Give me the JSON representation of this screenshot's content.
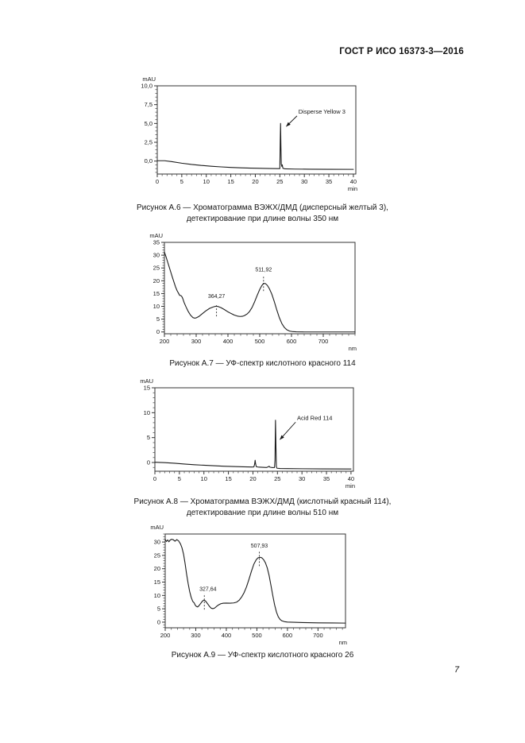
{
  "page": {
    "header": "ГОСТ Р ИСО 16373-3—2016",
    "page_number": "7"
  },
  "chart_data": [
    {
      "type": "line",
      "kind": "chromatogram",
      "y_axis_label": "mAU",
      "x_axis_label": "min",
      "xlim": [
        0,
        40.5
      ],
      "ylim": [
        -1.72,
        10
      ],
      "grid": false,
      "legend": "none",
      "xticks": {
        "values": [
          0,
          5,
          10,
          15,
          20,
          25,
          30,
          35,
          40
        ],
        "labels": [
          "0",
          "5",
          "10",
          "15",
          "20",
          "25",
          "30",
          "35",
          "40"
        ]
      },
      "yticks": {
        "values": [
          0,
          2.5,
          5,
          7.5,
          10
        ],
        "labels": [
          "0,0",
          "2,5",
          "5,0",
          "7,5",
          "10,0"
        ]
      },
      "x_minor_step": 1,
      "y_minor_step": 0.5,
      "series": [
        {
          "name": "signal 350 nm",
          "points": [
            [
              0,
              0.05
            ],
            [
              1.5,
              0.05
            ],
            [
              3,
              -0.08
            ],
            [
              5,
              -0.28
            ],
            [
              7,
              -0.45
            ],
            [
              9,
              -0.58
            ],
            [
              11,
              -0.68
            ],
            [
              13,
              -0.77
            ],
            [
              15,
              -0.84
            ],
            [
              17,
              -0.89
            ],
            [
              19,
              -0.93
            ],
            [
              21,
              -0.96
            ],
            [
              23,
              -0.99
            ],
            [
              24.5,
              -1.0
            ],
            [
              25.0,
              -1.0
            ],
            [
              25.08,
              2.5
            ],
            [
              25.15,
              5.0
            ],
            [
              25.22,
              2.0
            ],
            [
              25.3,
              -0.4
            ],
            [
              25.4,
              -0.7
            ],
            [
              25.5,
              -0.5
            ],
            [
              25.62,
              -0.95
            ],
            [
              26,
              -1.03
            ],
            [
              28,
              -1.06
            ],
            [
              31,
              -1.08
            ],
            [
              35,
              -1.09
            ],
            [
              40,
              -1.1
            ]
          ]
        }
      ],
      "peak_annotations": [],
      "arrow_annotations": [
        {
          "text": "Disperse Yellow 3",
          "text_x": 28.8,
          "text_y": 6.3,
          "line": [
            [
              28.5,
              6.0
            ],
            [
              26.3,
              4.6
            ]
          ]
        }
      ],
      "caption_lines": [
        "Рисунок А.6 — Хроматограмма ВЭЖХ/ДМД (дисперсный желтый 3),",
        "детектирование при длине волны 350 нм"
      ]
    },
    {
      "type": "line",
      "kind": "uv-spectrum",
      "y_axis_label": "mAU",
      "x_axis_label": "nm",
      "xlim": [
        200,
        800
      ],
      "ylim": [
        -0.7,
        35
      ],
      "grid": false,
      "legend": "none",
      "xticks": {
        "values": [
          200,
          300,
          400,
          500,
          600,
          700
        ],
        "labels": [
          "200",
          "300",
          "400",
          "500",
          "600",
          "700"
        ]
      },
      "yticks": {
        "values": [
          0,
          5,
          10,
          15,
          20,
          25,
          30,
          35
        ],
        "labels": [
          "0",
          "5",
          "10",
          "15",
          "20",
          "25",
          "30",
          "35"
        ]
      },
      "x_minor_step": 20,
      "y_minor_step": 1,
      "series": [
        {
          "name": "absorbance",
          "points": [
            [
              200,
              31.2
            ],
            [
              205,
              29.4
            ],
            [
              210,
              27.4
            ],
            [
              215,
              25.4
            ],
            [
              220,
              23.4
            ],
            [
              225,
              21.4
            ],
            [
              230,
              19.5
            ],
            [
              235,
              17.6
            ],
            [
              240,
              16.1
            ],
            [
              245,
              15.0
            ],
            [
              248,
              14.3
            ],
            [
              252,
              14.2
            ],
            [
              255,
              13.8
            ],
            [
              258,
              13.0
            ],
            [
              262,
              11.5
            ],
            [
              268,
              9.8
            ],
            [
              275,
              8.0
            ],
            [
              282,
              6.6
            ],
            [
              290,
              5.6
            ],
            [
              295,
              5.4
            ],
            [
              300,
              5.5
            ],
            [
              308,
              6.0
            ],
            [
              318,
              7.0
            ],
            [
              330,
              8.2
            ],
            [
              342,
              9.2
            ],
            [
              352,
              9.7
            ],
            [
              360,
              10.0
            ],
            [
              364,
              10.05
            ],
            [
              370,
              9.9
            ],
            [
              378,
              9.5
            ],
            [
              388,
              8.8
            ],
            [
              398,
              8.0
            ],
            [
              410,
              7.2
            ],
            [
              420,
              6.6
            ],
            [
              430,
              6.2
            ],
            [
              438,
              6.05
            ],
            [
              445,
              6.1
            ],
            [
              452,
              6.4
            ],
            [
              460,
              7.0
            ],
            [
              468,
              8.0
            ],
            [
              476,
              9.6
            ],
            [
              484,
              11.8
            ],
            [
              492,
              14.3
            ],
            [
              500,
              16.6
            ],
            [
              506,
              18.0
            ],
            [
              512,
              19.0
            ],
            [
              518,
              18.9
            ],
            [
              524,
              18.2
            ],
            [
              530,
              17.0
            ],
            [
              538,
              14.8
            ],
            [
              546,
              11.8
            ],
            [
              554,
              8.5
            ],
            [
              562,
              5.5
            ],
            [
              570,
              3.2
            ],
            [
              578,
              1.7
            ],
            [
              586,
              0.8
            ],
            [
              594,
              0.35
            ],
            [
              604,
              0.12
            ],
            [
              615,
              0.05
            ],
            [
              640,
              0
            ],
            [
              700,
              0
            ],
            [
              800,
              0
            ]
          ]
        }
      ],
      "peak_annotations": [
        {
          "label": "364,27",
          "x": 364,
          "line_y": [
            6.1,
            10.8
          ],
          "label_y": 13.3
        },
        {
          "label": "511,92",
          "x": 512,
          "line_y": [
            16.0,
            21.7
          ],
          "label_y": 23.6
        }
      ],
      "arrow_annotations": [],
      "caption_lines": [
        "Рисунок А.7 — УФ-спектр кислотного красного 114"
      ]
    },
    {
      "type": "line",
      "kind": "chromatogram",
      "y_axis_label": "mAU",
      "x_axis_label": "min",
      "xlim": [
        0,
        40.5
      ],
      "ylim": [
        -1.75,
        15
      ],
      "grid": false,
      "legend": "none",
      "xticks": {
        "values": [
          0,
          5,
          10,
          15,
          20,
          25,
          30,
          35,
          40
        ],
        "labels": [
          "0",
          "5",
          "10",
          "15",
          "20",
          "25",
          "30",
          "35",
          "40"
        ]
      },
      "yticks": {
        "values": [
          0,
          5,
          10,
          15
        ],
        "labels": [
          "0",
          "5",
          "10",
          "15"
        ]
      },
      "x_minor_step": 1,
      "y_minor_step": 1,
      "series": [
        {
          "name": "signal 510 nm",
          "points": [
            [
              0,
              0.05
            ],
            [
              2,
              -0.02
            ],
            [
              4,
              -0.15
            ],
            [
              6,
              -0.3
            ],
            [
              8,
              -0.44
            ],
            [
              10,
              -0.55
            ],
            [
              12,
              -0.65
            ],
            [
              14,
              -0.74
            ],
            [
              16,
              -0.81
            ],
            [
              18,
              -0.87
            ],
            [
              19.8,
              -0.9
            ],
            [
              20.2,
              -0.88
            ],
            [
              20.35,
              -0.3
            ],
            [
              20.45,
              0.45
            ],
            [
              20.55,
              -0.3
            ],
            [
              20.7,
              -0.85
            ],
            [
              21.2,
              -0.93
            ],
            [
              22,
              -0.97
            ],
            [
              22.8,
              -1.0
            ],
            [
              23.1,
              -0.88
            ],
            [
              23.3,
              -0.75
            ],
            [
              23.5,
              -0.95
            ],
            [
              24,
              -1.02
            ],
            [
              24.4,
              -1.0
            ],
            [
              24.5,
              0.5
            ],
            [
              24.6,
              8.5
            ],
            [
              24.7,
              3.0
            ],
            [
              24.78,
              -0.8
            ],
            [
              24.9,
              -1.15
            ],
            [
              25.5,
              -1.2
            ],
            [
              27,
              -1.22
            ],
            [
              30,
              -1.25
            ],
            [
              34,
              -1.28
            ],
            [
              40,
              -1.3
            ]
          ]
        }
      ],
      "peak_annotations": [],
      "arrow_annotations": [
        {
          "text": "Acid Red 114",
          "text_x": 29.0,
          "text_y": 8.5,
          "line": [
            [
              28.7,
              8.1
            ],
            [
              25.5,
              4.6
            ]
          ]
        }
      ],
      "caption_lines": [
        "Рисунок А.8 — Хроматограмма ВЭЖХ/ДМД (кислотный красный 114),",
        "детектирование при длине волны 510 нм"
      ]
    },
    {
      "type": "line",
      "kind": "uv-spectrum",
      "y_axis_label": "mAU",
      "x_axis_label": "nm",
      "xlim": [
        200,
        790
      ],
      "ylim": [
        -2.1,
        33
      ],
      "grid": false,
      "legend": "none",
      "xticks": {
        "values": [
          200,
          300,
          400,
          500,
          600,
          700
        ],
        "labels": [
          "200",
          "300",
          "400",
          "500",
          "600",
          "700"
        ]
      },
      "yticks": {
        "values": [
          0,
          5,
          10,
          15,
          20,
          25,
          30
        ],
        "labels": [
          "0",
          "5",
          "10",
          "15",
          "20",
          "25",
          "30"
        ]
      },
      "x_minor_step": 20,
      "y_minor_step": 1,
      "series": [
        {
          "name": "absorbance",
          "points": [
            [
              200,
              31.0
            ],
            [
              204,
              30.2
            ],
            [
              208,
              30.8
            ],
            [
              212,
              30.1
            ],
            [
              216,
              30.7
            ],
            [
              220,
              31.0
            ],
            [
              226,
              30.9
            ],
            [
              232,
              30.3
            ],
            [
              238,
              30.9
            ],
            [
              244,
              30.4
            ],
            [
              250,
              29.3
            ],
            [
              255,
              27.8
            ],
            [
              260,
              25.5
            ],
            [
              265,
              22.0
            ],
            [
              270,
              18.0
            ],
            [
              275,
              14.5
            ],
            [
              280,
              11.5
            ],
            [
              285,
              9.3
            ],
            [
              290,
              7.8
            ],
            [
              295,
              7.2
            ],
            [
              298,
              6.4
            ],
            [
              302,
              5.9
            ],
            [
              306,
              5.7
            ],
            [
              310,
              6.1
            ],
            [
              316,
              7.0
            ],
            [
              322,
              7.9
            ],
            [
              327,
              8.3
            ],
            [
              332,
              7.9
            ],
            [
              338,
              7.0
            ],
            [
              345,
              5.9
            ],
            [
              351,
              5.2
            ],
            [
              356,
              5.05
            ],
            [
              362,
              5.3
            ],
            [
              368,
              5.9
            ],
            [
              375,
              6.5
            ],
            [
              382,
              6.9
            ],
            [
              390,
              7.1
            ],
            [
              400,
              7.15
            ],
            [
              412,
              7.1
            ],
            [
              424,
              7.2
            ],
            [
              434,
              7.5
            ],
            [
              442,
              8.2
            ],
            [
              450,
              9.4
            ],
            [
              458,
              11.0
            ],
            [
              466,
              13.2
            ],
            [
              474,
              16.0
            ],
            [
              482,
              19.0
            ],
            [
              490,
              21.7
            ],
            [
              498,
              23.4
            ],
            [
              504,
              24.1
            ],
            [
              510,
              24.3
            ],
            [
              516,
              24.1
            ],
            [
              522,
              23.4
            ],
            [
              528,
              22.2
            ],
            [
              534,
              20.3
            ],
            [
              540,
              17.5
            ],
            [
              546,
              13.8
            ],
            [
              552,
              10.0
            ],
            [
              558,
              6.5
            ],
            [
              564,
              3.8
            ],
            [
              570,
              2.0
            ],
            [
              576,
              1.0
            ],
            [
              582,
              0.5
            ],
            [
              590,
              0.2
            ],
            [
              600,
              0.05
            ],
            [
              620,
              -0.05
            ],
            [
              650,
              -0.15
            ],
            [
              700,
              -0.25
            ],
            [
              750,
              -0.3
            ],
            [
              790,
              -0.35
            ]
          ]
        }
      ],
      "peak_annotations": [
        {
          "label": "327,64",
          "x": 328,
          "label_x": 340,
          "line_y": [
            4.7,
            10.7
          ],
          "label_y": 11.8
        },
        {
          "label": "507,93",
          "x": 508,
          "line_y": [
            21.0,
            26.4
          ],
          "label_y": 27.9
        }
      ],
      "arrow_annotations": [],
      "caption_lines": [
        "Рисунок А.9 — УФ-спектр кислотного красного 26"
      ]
    }
  ]
}
